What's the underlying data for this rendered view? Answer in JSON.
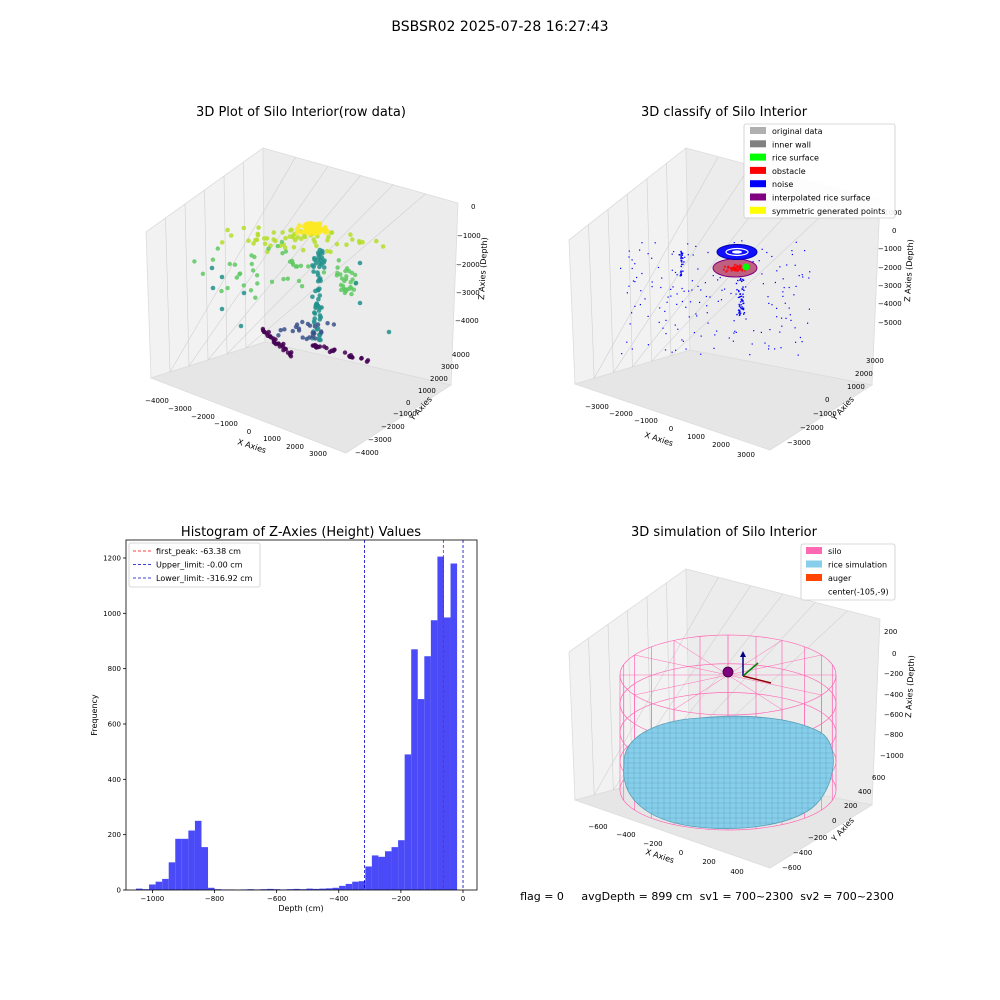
{
  "suptitle": "BSBSR02 2025-07-28 16:27:43",
  "chart_data": [
    {
      "type": "scatter3d",
      "title": "3D Plot of Silo Interior(row data)",
      "xlabel": "X Axies",
      "ylabel": "Y Axies",
      "zlabel": "Z Axies (Depth)",
      "x_ticks": [
        "−4000",
        "−3000",
        "−2000",
        "−1000",
        "0",
        "1000",
        "2000",
        "3000"
      ],
      "y_ticks": [
        "−4000",
        "−3000",
        "−2000",
        "−1000",
        "0",
        "1000",
        "2000",
        "3000",
        "4000"
      ],
      "z_ticks": [
        "−4000",
        "−3000",
        "−2000",
        "−1000",
        "0"
      ],
      "colormap": "viridis"
    },
    {
      "type": "scatter3d",
      "title": "3D classify of Silo Interior",
      "xlabel": "X Axies",
      "ylabel": "Y Axies",
      "zlabel": "Z Axies (Depth)",
      "x_ticks": [
        "−3000",
        "−2000",
        "−1000",
        "0",
        "1000",
        "2000",
        "3000"
      ],
      "y_ticks": [
        "−3000",
        "−2000",
        "−1000",
        "0",
        "1000",
        "2000",
        "3000"
      ],
      "z_ticks": [
        "−5000",
        "−4000",
        "−3000",
        "−2000",
        "−1000",
        "0",
        "1000"
      ],
      "legend_position": "top-right",
      "legend": [
        {
          "label": "original data",
          "color": "#b0b0b0"
        },
        {
          "label": "inner wall",
          "color": "#808080"
        },
        {
          "label": "rice surface",
          "color": "#00ff00"
        },
        {
          "label": "obstacle",
          "color": "#ff0000"
        },
        {
          "label": "noise",
          "color": "#0000ff"
        },
        {
          "label": "interpolated rice surface",
          "color": "#800080"
        },
        {
          "label": "symmetric generated points",
          "color": "#ffff00"
        }
      ]
    },
    {
      "type": "histogram",
      "title": "Histogram of Z-Axies (Height) Values",
      "xlabel": "Depth (cm)",
      "ylabel": "Frequency",
      "xlim": [
        -1085,
        45
      ],
      "ylim": [
        0,
        1265
      ],
      "x_ticks": [
        -1000,
        -800,
        -600,
        -400,
        -200,
        0
      ],
      "x_tick_labels": [
        "−1000",
        "−800",
        "−600",
        "−400",
        "−200",
        "0"
      ],
      "y_ticks": [
        0,
        200,
        400,
        600,
        800,
        1000,
        1200
      ],
      "bin_width": 21.1,
      "bins": [
        {
          "x0": -1053.0,
          "count": 5
        },
        {
          "x0": -1031.9,
          "count": 3
        },
        {
          "x0": -1010.8,
          "count": 20
        },
        {
          "x0": -989.7,
          "count": 30
        },
        {
          "x0": -968.6,
          "count": 40
        },
        {
          "x0": -947.5,
          "count": 100
        },
        {
          "x0": -926.4,
          "count": 185
        },
        {
          "x0": -905.3,
          "count": 185
        },
        {
          "x0": -884.2,
          "count": 215
        },
        {
          "x0": -863.1,
          "count": 250
        },
        {
          "x0": -842.0,
          "count": 155
        },
        {
          "x0": -820.9,
          "count": 8
        },
        {
          "x0": -799.8,
          "count": 3
        },
        {
          "x0": -778.7,
          "count": 2
        },
        {
          "x0": -757.6,
          "count": 2
        },
        {
          "x0": -736.5,
          "count": 1
        },
        {
          "x0": -715.4,
          "count": 2
        },
        {
          "x0": -694.3,
          "count": 3
        },
        {
          "x0": -673.2,
          "count": 2
        },
        {
          "x0": -652.1,
          "count": 3
        },
        {
          "x0": -631.0,
          "count": 4
        },
        {
          "x0": -609.9,
          "count": 3
        },
        {
          "x0": -588.8,
          "count": 2
        },
        {
          "x0": -567.7,
          "count": 3
        },
        {
          "x0": -546.6,
          "count": 4
        },
        {
          "x0": -525.5,
          "count": 3
        },
        {
          "x0": -504.4,
          "count": 5
        },
        {
          "x0": -483.3,
          "count": 4
        },
        {
          "x0": -462.2,
          "count": 5
        },
        {
          "x0": -441.1,
          "count": 6
        },
        {
          "x0": -420.0,
          "count": 8
        },
        {
          "x0": -398.9,
          "count": 15
        },
        {
          "x0": -377.8,
          "count": 22
        },
        {
          "x0": -356.7,
          "count": 30
        },
        {
          "x0": -335.6,
          "count": 32
        },
        {
          "x0": -314.5,
          "count": 85
        },
        {
          "x0": -293.4,
          "count": 125
        },
        {
          "x0": -272.3,
          "count": 120
        },
        {
          "x0": -251.2,
          "count": 140
        },
        {
          "x0": -230.1,
          "count": 155
        },
        {
          "x0": -209.0,
          "count": 180
        },
        {
          "x0": -187.9,
          "count": 490
        },
        {
          "x0": -166.8,
          "count": 870
        },
        {
          "x0": -145.7,
          "count": 690
        },
        {
          "x0": -124.6,
          "count": 845
        },
        {
          "x0": -103.5,
          "count": 975
        },
        {
          "x0": -82.4,
          "count": 1205
        },
        {
          "x0": -61.3,
          "count": 985
        },
        {
          "x0": -40.2,
          "count": 1180
        }
      ],
      "bar_color": "#4a4af8",
      "vlines": [
        {
          "label": "first_peak: -63.38 cm",
          "x": -63.38,
          "color": "#ff0000"
        },
        {
          "label": "Upper_limit: -0.00 cm",
          "x": 0,
          "color": "#0000c8"
        },
        {
          "label": "Lower_limit: -316.92 cm",
          "x": -316.92,
          "color": "#0000c8"
        }
      ],
      "legend_position": "top-left"
    },
    {
      "type": "surface3d",
      "title": "3D simulation of Silo Interior",
      "xlabel": "X Axies",
      "ylabel": "Y Axies",
      "zlabel": "Z Axies (Depth)",
      "x_ticks": [
        "−600",
        "−400",
        "−200",
        "0",
        "200",
        "400"
      ],
      "y_ticks": [
        "−600",
        "−400",
        "−200",
        "0",
        "200",
        "400",
        "600"
      ],
      "z_ticks": [
        "−1000",
        "−800",
        "−600",
        "−400",
        "−200",
        "0",
        "200"
      ],
      "legend_position": "top-right",
      "legend": [
        {
          "label": "silo",
          "color": "#ff69b4"
        },
        {
          "label": "rice simulation",
          "color": "#87ceeb"
        },
        {
          "label": "auger",
          "color": "#ff4500"
        },
        {
          "label": "center(-105,-9)",
          "color": "none"
        }
      ]
    }
  ],
  "footer": "flag = 0     avgDepth = 899 cm  sv1 = 700~2300  sv2 = 700~2300"
}
